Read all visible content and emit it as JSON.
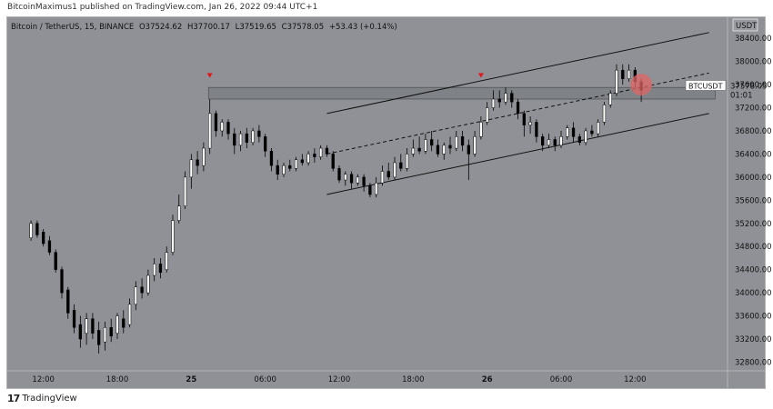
{
  "header": {
    "published_text": "BitcoinMaximus1 published on TradingView.com, Jan 26, 2022 09:44 UTC+1"
  },
  "legend": {
    "symbol_text": "Bitcoin / TetherUS, 15, BINANCE",
    "o_label": "O",
    "o_value": "37524.62",
    "h_label": "H",
    "h_value": "37700.17",
    "l_label": "L",
    "l_value": "37519.65",
    "c_label": "C",
    "c_value": "37578.05",
    "change": "+53.43 (+0.14%)"
  },
  "footer": {
    "logo_glyph": "17",
    "brand": "TradingView"
  },
  "price_label": {
    "symbol": "BTCUSDT",
    "price": "37578.05",
    "countdown": "01:01"
  },
  "colors": {
    "background": "#8f9196",
    "candle_up": "#ffffff",
    "candle_down": "#000000",
    "resistance_zone": "#7f8287",
    "marker": "#e3141b",
    "highlight_circle": "#e06666"
  },
  "chart_data": {
    "type": "candlestick",
    "currency": "USDT",
    "x_ticks": [
      "12:00",
      "18:00",
      "25",
      "06:00",
      "12:00",
      "18:00",
      "26",
      "06:00",
      "12:00"
    ],
    "y_ticks": [
      32800,
      33200,
      33600,
      34000,
      34400,
      34800,
      35200,
      35600,
      36000,
      36400,
      36800,
      37200,
      37600,
      38000,
      38400
    ],
    "ylim": [
      32650,
      38780
    ],
    "x_range_hours": [
      -13,
      36.5
    ],
    "candles": [
      {
        "t": -13,
        "o": 34950,
        "c": 35200,
        "h": 35250,
        "l": 34900
      },
      {
        "t": -12.5,
        "o": 35200,
        "c": 35000,
        "h": 35250,
        "l": 34950
      },
      {
        "t": -12,
        "o": 35050,
        "c": 34850,
        "h": 35100,
        "l": 34800
      },
      {
        "t": -11.5,
        "o": 34900,
        "c": 34700,
        "h": 34980,
        "l": 34650
      },
      {
        "t": -11,
        "o": 34700,
        "c": 34400,
        "h": 34750,
        "l": 34350
      },
      {
        "t": -10.5,
        "o": 34400,
        "c": 34000,
        "h": 34450,
        "l": 33900
      },
      {
        "t": -10,
        "o": 34050,
        "c": 33650,
        "h": 34100,
        "l": 33550
      },
      {
        "t": -9.5,
        "o": 33700,
        "c": 33400,
        "h": 33800,
        "l": 33300
      },
      {
        "t": -9,
        "o": 33450,
        "c": 33200,
        "h": 33600,
        "l": 33050
      },
      {
        "t": -8.5,
        "o": 33300,
        "c": 33550,
        "h": 33650,
        "l": 33100
      },
      {
        "t": -8,
        "o": 33550,
        "c": 33300,
        "h": 33650,
        "l": 33200
      },
      {
        "t": -7.5,
        "o": 33350,
        "c": 33100,
        "h": 33500,
        "l": 32950
      },
      {
        "t": -7,
        "o": 33150,
        "c": 33400,
        "h": 33500,
        "l": 33000
      },
      {
        "t": -6.5,
        "o": 33400,
        "c": 33250,
        "h": 33550,
        "l": 33150
      },
      {
        "t": -6,
        "o": 33300,
        "c": 33600,
        "h": 33650,
        "l": 33200
      },
      {
        "t": -5.5,
        "o": 33550,
        "c": 33400,
        "h": 33700,
        "l": 33300
      },
      {
        "t": -5,
        "o": 33450,
        "c": 33800,
        "h": 33900,
        "l": 33400
      },
      {
        "t": -4.5,
        "o": 33800,
        "c": 34100,
        "h": 34200,
        "l": 33700
      },
      {
        "t": -4,
        "o": 34100,
        "c": 34000,
        "h": 34250,
        "l": 33900
      },
      {
        "t": -3.5,
        "o": 34000,
        "c": 34300,
        "h": 34400,
        "l": 33950
      },
      {
        "t": -3,
        "o": 34300,
        "c": 34500,
        "h": 34600,
        "l": 34200
      },
      {
        "t": -2.5,
        "o": 34500,
        "c": 34350,
        "h": 34600,
        "l": 34250
      },
      {
        "t": -2,
        "o": 34400,
        "c": 34700,
        "h": 34800,
        "l": 34350
      },
      {
        "t": -1.5,
        "o": 34700,
        "c": 35250,
        "h": 35350,
        "l": 34650
      },
      {
        "t": -1,
        "o": 35250,
        "c": 35500,
        "h": 35700,
        "l": 35200
      },
      {
        "t": -0.5,
        "o": 35500,
        "c": 36000,
        "h": 36100,
        "l": 35450
      },
      {
        "t": 0,
        "o": 36000,
        "c": 36300,
        "h": 36400,
        "l": 35800
      },
      {
        "t": 0.5,
        "o": 36300,
        "c": 36200,
        "h": 36450,
        "l": 36050
      },
      {
        "t": 1,
        "o": 36200,
        "c": 36500,
        "h": 36600,
        "l": 36100
      },
      {
        "t": 1.5,
        "o": 36500,
        "c": 37100,
        "h": 37350,
        "l": 36400
      },
      {
        "t": 2,
        "o": 37100,
        "c": 36800,
        "h": 37150,
        "l": 36700
      },
      {
        "t": 2.5,
        "o": 36800,
        "c": 36950,
        "h": 37000,
        "l": 36700
      },
      {
        "t": 3,
        "o": 36950,
        "c": 36750,
        "h": 37000,
        "l": 36650
      },
      {
        "t": 3.5,
        "o": 36750,
        "c": 36550,
        "h": 36850,
        "l": 36400
      },
      {
        "t": 4,
        "o": 36550,
        "c": 36750,
        "h": 36800,
        "l": 36450
      },
      {
        "t": 4.5,
        "o": 36750,
        "c": 36600,
        "h": 36850,
        "l": 36500
      },
      {
        "t": 5,
        "o": 36600,
        "c": 36800,
        "h": 36850,
        "l": 36550
      },
      {
        "t": 5.5,
        "o": 36800,
        "c": 36700,
        "h": 36900,
        "l": 36600
      },
      {
        "t": 6,
        "o": 36700,
        "c": 36450,
        "h": 36750,
        "l": 36350
      },
      {
        "t": 6.5,
        "o": 36450,
        "c": 36200,
        "h": 36500,
        "l": 36100
      },
      {
        "t": 7,
        "o": 36200,
        "c": 36050,
        "h": 36300,
        "l": 35950
      },
      {
        "t": 7.5,
        "o": 36050,
        "c": 36200,
        "h": 36250,
        "l": 36000
      },
      {
        "t": 8,
        "o": 36200,
        "c": 36150,
        "h": 36300,
        "l": 36100
      },
      {
        "t": 8.5,
        "o": 36150,
        "c": 36300,
        "h": 36350,
        "l": 36100
      },
      {
        "t": 9,
        "o": 36300,
        "c": 36250,
        "h": 36400,
        "l": 36200
      },
      {
        "t": 9.5,
        "o": 36250,
        "c": 36400,
        "h": 36450,
        "l": 36200
      },
      {
        "t": 10,
        "o": 36400,
        "c": 36350,
        "h": 36500,
        "l": 36250
      },
      {
        "t": 10.5,
        "o": 36350,
        "c": 36500,
        "h": 36550,
        "l": 36300
      },
      {
        "t": 11,
        "o": 36500,
        "c": 36400,
        "h": 36550,
        "l": 36350
      },
      {
        "t": 11.5,
        "o": 36400,
        "c": 36150,
        "h": 36450,
        "l": 36100
      },
      {
        "t": 12,
        "o": 36150,
        "c": 35950,
        "h": 36200,
        "l": 35900
      },
      {
        "t": 12.5,
        "o": 35950,
        "c": 36050,
        "h": 36100,
        "l": 35850
      },
      {
        "t": 13,
        "o": 36050,
        "c": 35900,
        "h": 36100,
        "l": 35800
      },
      {
        "t": 13.5,
        "o": 35900,
        "c": 36000,
        "h": 36050,
        "l": 35850
      },
      {
        "t": 14,
        "o": 36000,
        "c": 35850,
        "h": 36050,
        "l": 35750
      },
      {
        "t": 14.5,
        "o": 35850,
        "c": 35700,
        "h": 35900,
        "l": 35650
      },
      {
        "t": 15,
        "o": 35700,
        "c": 35900,
        "h": 36000,
        "l": 35650
      },
      {
        "t": 15.5,
        "o": 35900,
        "c": 36100,
        "h": 36200,
        "l": 35850
      },
      {
        "t": 16,
        "o": 36100,
        "c": 36000,
        "h": 36250,
        "l": 35950
      },
      {
        "t": 16.5,
        "o": 36000,
        "c": 36250,
        "h": 36350,
        "l": 35950
      },
      {
        "t": 17,
        "o": 36250,
        "c": 36150,
        "h": 36400,
        "l": 36100
      },
      {
        "t": 17.5,
        "o": 36150,
        "c": 36400,
        "h": 36500,
        "l": 36100
      },
      {
        "t": 18,
        "o": 36400,
        "c": 36500,
        "h": 36650,
        "l": 36350
      },
      {
        "t": 18.5,
        "o": 36500,
        "c": 36450,
        "h": 36700,
        "l": 36400
      },
      {
        "t": 19,
        "o": 36450,
        "c": 36650,
        "h": 36750,
        "l": 36400
      },
      {
        "t": 19.5,
        "o": 36650,
        "c": 36550,
        "h": 36800,
        "l": 36450
      },
      {
        "t": 20,
        "o": 36550,
        "c": 36400,
        "h": 36650,
        "l": 36350
      },
      {
        "t": 20.5,
        "o": 36400,
        "c": 36550,
        "h": 36600,
        "l": 36300
      },
      {
        "t": 21,
        "o": 36550,
        "c": 36500,
        "h": 36700,
        "l": 36400
      },
      {
        "t": 21.5,
        "o": 36500,
        "c": 36700,
        "h": 36800,
        "l": 36450
      },
      {
        "t": 22,
        "o": 36700,
        "c": 36550,
        "h": 36800,
        "l": 36450
      },
      {
        "t": 22.5,
        "o": 36550,
        "c": 36400,
        "h": 36650,
        "l": 35950
      },
      {
        "t": 23,
        "o": 36400,
        "c": 36700,
        "h": 36800,
        "l": 36350
      },
      {
        "t": 23.5,
        "o": 36700,
        "c": 36950,
        "h": 37050,
        "l": 36650
      },
      {
        "t": 24,
        "o": 36950,
        "c": 37200,
        "h": 37300,
        "l": 36900
      },
      {
        "t": 24.5,
        "o": 37200,
        "c": 37350,
        "h": 37500,
        "l": 37150
      },
      {
        "t": 25,
        "o": 37350,
        "c": 37300,
        "h": 37500,
        "l": 37200
      },
      {
        "t": 25.5,
        "o": 37300,
        "c": 37450,
        "h": 37550,
        "l": 37250
      },
      {
        "t": 26,
        "o": 37450,
        "c": 37300,
        "h": 37500,
        "l": 37200
      },
      {
        "t": 26.5,
        "o": 37300,
        "c": 37100,
        "h": 37350,
        "l": 37000
      },
      {
        "t": 27,
        "o": 37100,
        "c": 36900,
        "h": 37150,
        "l": 36700
      },
      {
        "t": 27.5,
        "o": 36900,
        "c": 36950,
        "h": 37050,
        "l": 36750
      },
      {
        "t": 28,
        "o": 36950,
        "c": 36700,
        "h": 37000,
        "l": 36600
      },
      {
        "t": 28.5,
        "o": 36700,
        "c": 36550,
        "h": 36750,
        "l": 36450
      },
      {
        "t": 29,
        "o": 36550,
        "c": 36650,
        "h": 36750,
        "l": 36500
      },
      {
        "t": 29.5,
        "o": 36650,
        "c": 36550,
        "h": 36700,
        "l": 36450
      },
      {
        "t": 30,
        "o": 36550,
        "c": 36700,
        "h": 36800,
        "l": 36500
      },
      {
        "t": 30.5,
        "o": 36700,
        "c": 36850,
        "h": 36900,
        "l": 36650
      },
      {
        "t": 31,
        "o": 36850,
        "c": 36700,
        "h": 36950,
        "l": 36600
      },
      {
        "t": 31.5,
        "o": 36700,
        "c": 36600,
        "h": 36750,
        "l": 36550
      },
      {
        "t": 32,
        "o": 36600,
        "c": 36800,
        "h": 36850,
        "l": 36550
      },
      {
        "t": 32.5,
        "o": 36800,
        "c": 36750,
        "h": 36900,
        "l": 36700
      },
      {
        "t": 33,
        "o": 36750,
        "c": 36950,
        "h": 37000,
        "l": 36700
      },
      {
        "t": 33.5,
        "o": 36950,
        "c": 37250,
        "h": 37300,
        "l": 36900
      },
      {
        "t": 34,
        "o": 37250,
        "c": 37450,
        "h": 37500,
        "l": 37200
      },
      {
        "t": 34.5,
        "o": 37450,
        "c": 37850,
        "h": 37950,
        "l": 37400
      },
      {
        "t": 35,
        "o": 37850,
        "c": 37700,
        "h": 37950,
        "l": 37600
      },
      {
        "t": 35.5,
        "o": 37700,
        "c": 37850,
        "h": 37950,
        "l": 37650
      },
      {
        "t": 36,
        "o": 37850,
        "c": 37650,
        "h": 37900,
        "l": 37550
      },
      {
        "t": 36.5,
        "o": 37650,
        "c": 37500,
        "h": 37700,
        "l": 37300
      }
    ],
    "resistance_zone": {
      "low": 37350,
      "high": 37550
    },
    "channel": {
      "upper": [
        [
          11,
          37100
        ],
        [
          42,
          38500
        ]
      ],
      "lower": [
        [
          11,
          35700
        ],
        [
          42,
          37100
        ]
      ],
      "mid": [
        [
          11,
          36400
        ],
        [
          42,
          37800
        ]
      ]
    },
    "markers": [
      {
        "t": 1.5,
        "y": 37750
      },
      {
        "t": 23.5,
        "y": 37750
      }
    ],
    "highlight": {
      "t": 36.5,
      "y": 37600
    }
  }
}
